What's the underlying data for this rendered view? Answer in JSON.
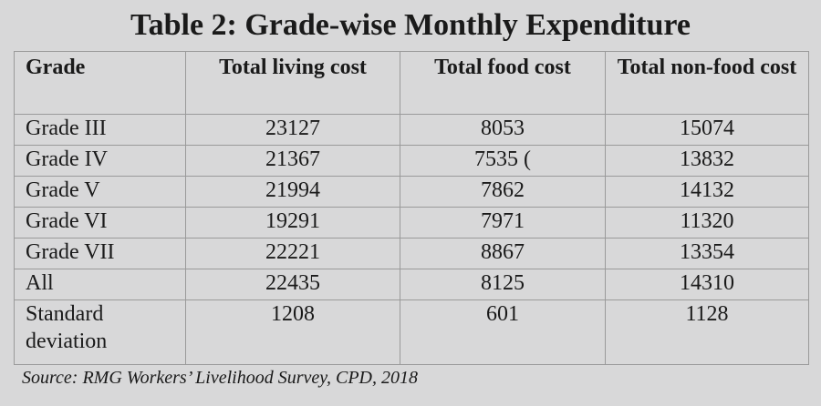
{
  "title": "Table 2: Grade-wise Monthly Expenditure",
  "headers": [
    "Grade",
    "Total living cost",
    "Total food cost",
    "Total non-food cost"
  ],
  "rows": [
    [
      "Grade III",
      "23127",
      "8053",
      "15074"
    ],
    [
      "Grade IV",
      "21367",
      "7535 (",
      "13832"
    ],
    [
      "Grade V",
      "21994",
      "7862",
      "14132"
    ],
    [
      "Grade VI",
      "19291",
      "7971",
      "11320"
    ],
    [
      "Grade VII",
      "22221",
      "8867",
      "13354"
    ],
    [
      "All",
      "22435",
      "8125",
      "14310"
    ],
    [
      "Standard deviation",
      "1208",
      "601",
      "1128"
    ]
  ],
  "source": "Source: RMG Workers’ Livelihood Survey, CPD, 2018"
}
